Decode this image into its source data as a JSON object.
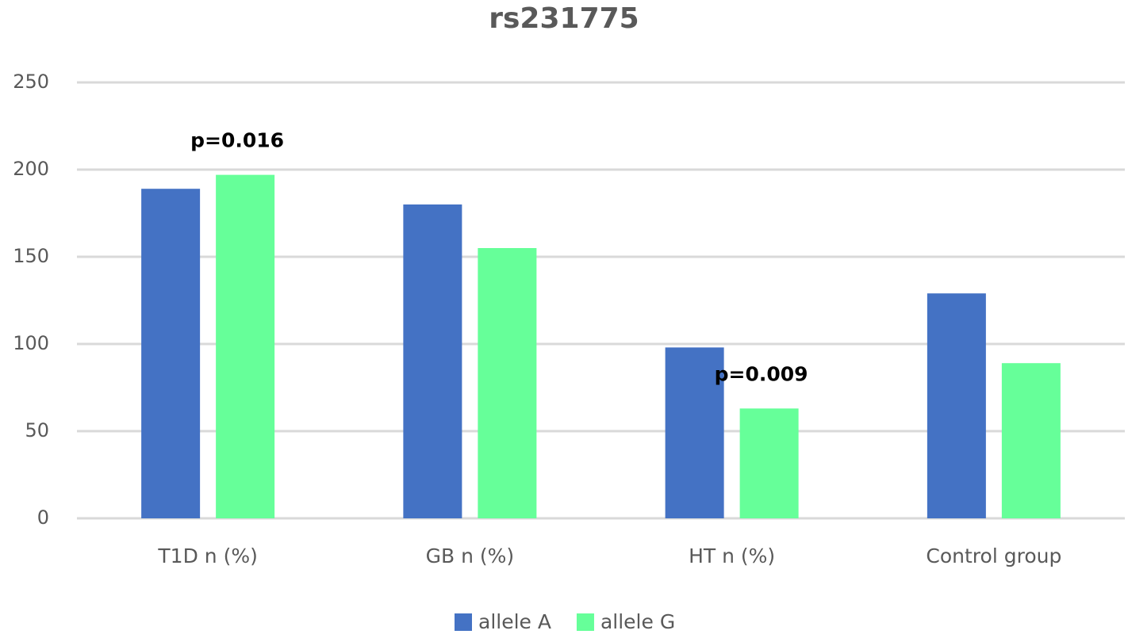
{
  "chart_data": {
    "type": "bar",
    "title": "rs231775",
    "categories": [
      "T1D n (%)",
      "GB n (%)",
      "HT n (%)",
      "Control group"
    ],
    "series": [
      {
        "name": "allele A",
        "color": "#4472c4",
        "values": [
          189,
          180,
          98,
          129
        ]
      },
      {
        "name": "allele G",
        "color": "#66ff99",
        "values": [
          197,
          155,
          63,
          89
        ]
      }
    ],
    "annotations": [
      {
        "text": "p=0.016",
        "category": "T1D n (%)",
        "series": "allele G"
      },
      {
        "text": "p=0.009",
        "category": "HT n (%)",
        "series": "allele G"
      }
    ],
    "ylim": [
      0,
      250
    ],
    "yticks": [
      0,
      50,
      100,
      150,
      200,
      250
    ],
    "grid": true,
    "legend": "bottom"
  }
}
